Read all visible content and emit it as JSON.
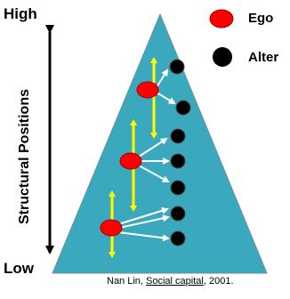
{
  "labels": {
    "high": "High",
    "low": "Low",
    "axis_title": "Structural Positions"
  },
  "legend": {
    "ego": "Ego",
    "alter": "Alter"
  },
  "citation": {
    "author": "Nan Lin, ",
    "title": "Social capital",
    "year": ", 2001."
  },
  "colors": {
    "pyramid": "#3aa8bd",
    "ego": "#ff0000",
    "alter": "#000000",
    "range_bar": "#ffff00",
    "arrows": "#ffffff"
  },
  "egos": [
    {
      "name": "ego-top",
      "alters": 2
    },
    {
      "name": "ego-middle",
      "alters": 3
    },
    {
      "name": "ego-bottom",
      "alters": 3
    }
  ]
}
